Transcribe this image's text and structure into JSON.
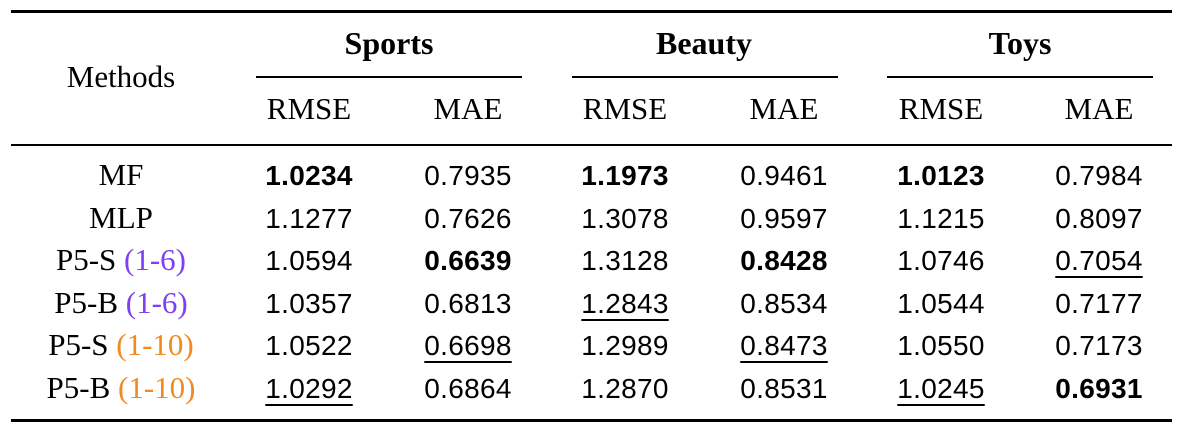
{
  "table": {
    "method_header": "Methods",
    "groups": [
      {
        "name": "Sports",
        "cols": [
          "RMSE",
          "MAE"
        ]
      },
      {
        "name": "Beauty",
        "cols": [
          "RMSE",
          "MAE"
        ]
      },
      {
        "name": "Toys",
        "cols": [
          "RMSE",
          "MAE"
        ]
      }
    ],
    "rows": [
      {
        "method": "MF",
        "tag": "",
        "tag_color": "",
        "values": [
          "1.0234",
          "0.7935",
          "1.1973",
          "0.9461",
          "1.0123",
          "0.7984"
        ],
        "bold": [
          true,
          false,
          true,
          false,
          true,
          false
        ],
        "underline": [
          false,
          false,
          false,
          false,
          false,
          false
        ]
      },
      {
        "method": "MLP",
        "tag": "",
        "tag_color": "",
        "values": [
          "1.1277",
          "0.7626",
          "1.3078",
          "0.9597",
          "1.1215",
          "0.8097"
        ],
        "bold": [
          false,
          false,
          false,
          false,
          false,
          false
        ],
        "underline": [
          false,
          false,
          false,
          false,
          false,
          false
        ]
      },
      {
        "method": "P5-S",
        "tag": "(1-6)",
        "tag_color": "#7f3ff2",
        "values": [
          "1.0594",
          "0.6639",
          "1.3128",
          "0.8428",
          "1.0746",
          "0.7054"
        ],
        "bold": [
          false,
          true,
          false,
          true,
          false,
          false
        ],
        "underline": [
          false,
          false,
          false,
          false,
          false,
          true
        ]
      },
      {
        "method": "P5-B",
        "tag": "(1-6)",
        "tag_color": "#7f3ff2",
        "values": [
          "1.0357",
          "0.6813",
          "1.2843",
          "0.8534",
          "1.0544",
          "0.7177"
        ],
        "bold": [
          false,
          false,
          false,
          false,
          false,
          false
        ],
        "underline": [
          false,
          false,
          true,
          false,
          false,
          false
        ]
      },
      {
        "method": "P5-S",
        "tag": "(1-10)",
        "tag_color": "#f28a22",
        "values": [
          "1.0522",
          "0.6698",
          "1.2989",
          "0.8473",
          "1.0550",
          "0.7173"
        ],
        "bold": [
          false,
          false,
          false,
          false,
          false,
          false
        ],
        "underline": [
          false,
          true,
          false,
          true,
          false,
          false
        ]
      },
      {
        "method": "P5-B",
        "tag": "(1-10)",
        "tag_color": "#f28a22",
        "values": [
          "1.0292",
          "0.6864",
          "1.2870",
          "0.8531",
          "1.0245",
          "0.6931"
        ],
        "bold": [
          false,
          false,
          false,
          false,
          false,
          true
        ],
        "underline": [
          true,
          false,
          false,
          false,
          true,
          false
        ]
      }
    ]
  }
}
